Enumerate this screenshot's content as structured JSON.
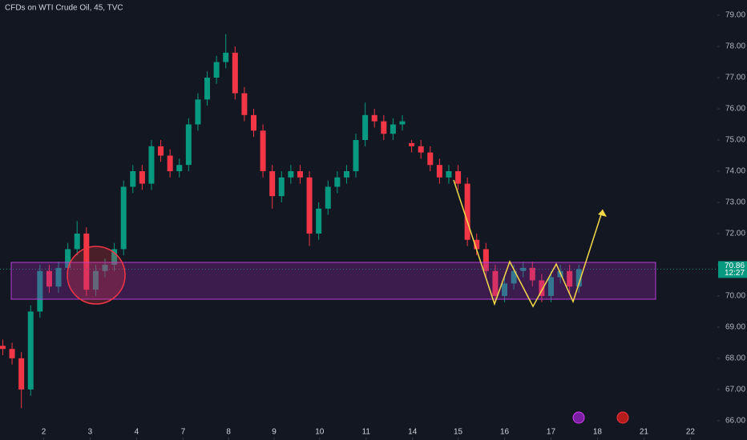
{
  "chart_data": {
    "type": "candlestick",
    "title": "CFDs on WTI Crude Oil, 45, TVC",
    "open": [
      68.4,
      68.3,
      68.0,
      67.0,
      69.5,
      70.8,
      70.3,
      70.9,
      71.5,
      72.0,
      70.2,
      70.8,
      71.0,
      71.5,
      73.5,
      74.0,
      73.6,
      74.8,
      74.5,
      74.0,
      74.2,
      75.5,
      76.3,
      77.0,
      77.5,
      77.8,
      76.5,
      75.8,
      75.3,
      74.0,
      73.2,
      73.8,
      74.0,
      73.8,
      72.0,
      72.8,
      73.5,
      73.8,
      74.0,
      75.0,
      75.8,
      75.6,
      75.2,
      75.5,
      74.9,
      74.8,
      74.6,
      74.2,
      73.8,
      74.0,
      73.6,
      71.8,
      71.5,
      70.8,
      70.0,
      70.4,
      70.8,
      70.9,
      70.5,
      70.0,
      70.6,
      70.8,
      70.3
    ],
    "high": [
      68.6,
      68.5,
      68.2,
      69.7,
      71.0,
      71.0,
      71.1,
      71.7,
      72.4,
      72.2,
      71.0,
      71.2,
      71.7,
      73.7,
      74.2,
      74.2,
      75.0,
      75.0,
      74.7,
      74.4,
      75.7,
      76.5,
      77.2,
      77.7,
      78.4,
      78.0,
      76.7,
      76.0,
      75.5,
      74.2,
      74.0,
      74.2,
      74.2,
      74.0,
      73.0,
      73.7,
      74.0,
      74.2,
      75.2,
      76.2,
      76.0,
      75.8,
      75.7,
      75.8,
      75.0,
      75.0,
      74.8,
      74.4,
      74.2,
      74.2,
      73.8,
      72.0,
      71.7,
      71.0,
      70.6,
      71.0,
      71.1,
      71.1,
      70.7,
      70.8,
      71.0,
      71.0,
      71.0
    ],
    "low": [
      68.1,
      67.8,
      66.4,
      66.8,
      69.3,
      70.1,
      70.1,
      70.7,
      71.3,
      70.0,
      70.0,
      70.6,
      70.8,
      71.3,
      73.3,
      73.4,
      73.4,
      74.3,
      73.8,
      73.8,
      74.0,
      75.3,
      76.1,
      76.8,
      77.3,
      76.3,
      75.6,
      75.1,
      73.8,
      72.8,
      73.0,
      73.6,
      73.6,
      71.6,
      71.8,
      72.6,
      73.3,
      73.6,
      73.8,
      74.8,
      75.4,
      75.0,
      75.0,
      75.3,
      74.6,
      74.4,
      74.0,
      73.6,
      73.6,
      73.4,
      71.6,
      71.3,
      70.6,
      69.8,
      69.8,
      70.2,
      70.6,
      70.3,
      69.8,
      69.8,
      70.4,
      70.1,
      70.1
    ],
    "close": [
      68.3,
      68.0,
      67.0,
      69.5,
      70.8,
      70.3,
      70.9,
      71.5,
      72.0,
      70.2,
      70.8,
      71.0,
      71.5,
      73.5,
      74.0,
      73.6,
      74.8,
      74.5,
      74.0,
      74.2,
      75.5,
      76.3,
      77.0,
      77.5,
      77.8,
      76.5,
      75.8,
      75.3,
      74.0,
      73.2,
      73.8,
      74.0,
      73.8,
      72.0,
      72.8,
      73.5,
      73.8,
      74.0,
      75.0,
      75.8,
      75.6,
      75.2,
      75.5,
      75.6,
      74.8,
      74.6,
      74.2,
      73.8,
      74.0,
      73.6,
      71.8,
      71.5,
      70.8,
      70.0,
      70.4,
      70.8,
      70.9,
      70.5,
      70.0,
      70.6,
      70.8,
      70.3,
      70.86
    ],
    "up_color": "#089981",
    "down_color": "#f23645",
    "xlim": [
      -0.3,
      76.9
    ],
    "xticks": [
      {
        "value": 4.4,
        "label": "2"
      },
      {
        "value": 9.4,
        "label": "3"
      },
      {
        "value": 14.4,
        "label": "4"
      },
      {
        "value": 19.4,
        "label": "7"
      },
      {
        "value": 24.3,
        "label": "8"
      },
      {
        "value": 29.2,
        "label": "9"
      },
      {
        "value": 34.1,
        "label": "10"
      },
      {
        "value": 39.1,
        "label": "11"
      },
      {
        "value": 44.1,
        "label": "14"
      },
      {
        "value": 49.0,
        "label": "15"
      },
      {
        "value": 54.0,
        "label": "16"
      },
      {
        "value": 59.0,
        "label": "17"
      },
      {
        "value": 64.0,
        "label": "18"
      },
      {
        "value": 69.0,
        "label": "21"
      },
      {
        "value": 74.0,
        "label": "22"
      }
    ],
    "ylim": [
      65.38,
      79.49
    ],
    "yticks": [
      {
        "value": 66,
        "label": "66.00"
      },
      {
        "value": 67,
        "label": "67.00"
      },
      {
        "value": 68,
        "label": "68.00"
      },
      {
        "value": 69,
        "label": "69.00"
      },
      {
        "value": 70,
        "label": "70.00"
      },
      {
        "value": 71,
        "label": "71.00"
      },
      {
        "value": 72,
        "label": "72.00"
      },
      {
        "value": 73,
        "label": "73.00"
      },
      {
        "value": 74,
        "label": "74.00"
      },
      {
        "value": 75,
        "label": "75.00"
      },
      {
        "value": 76,
        "label": "76.00"
      },
      {
        "value": 77,
        "label": "77.00"
      },
      {
        "value": 78,
        "label": "78.00"
      },
      {
        "value": 79,
        "label": "79.00"
      }
    ],
    "last_price": 70.86,
    "countdown": "12:27",
    "grid": false
  }
}
